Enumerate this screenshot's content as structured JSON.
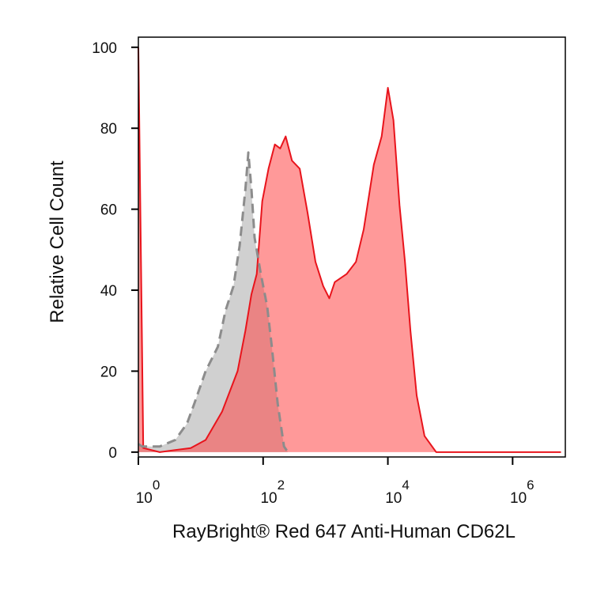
{
  "chart_data": {
    "type": "area",
    "xlabel": "RayBright® Red 647 Anti-Human CD62L",
    "ylabel": "Relative Cell Count",
    "xscale": "log",
    "xlim": [
      1,
      7000000
    ],
    "ylim": [
      -1.2,
      102.5
    ],
    "xticks": [
      {
        "value": 1,
        "label": "10",
        "exponent": "0"
      },
      {
        "value": 100,
        "label": "10",
        "exponent": "2"
      },
      {
        "value": 10000,
        "label": "10",
        "exponent": "4"
      },
      {
        "value": 1000000,
        "label": "10",
        "exponent": "6"
      }
    ],
    "yticks": [
      0,
      20,
      40,
      60,
      80,
      100
    ],
    "series": [
      {
        "color": "#8c8c8c",
        "fill": "rgba(170,170,170,0.55)",
        "line_style": "dashed",
        "x": [
          1,
          1.15,
          2.2,
          3.9,
          6,
          7.9,
          12,
          18.8,
          25,
          33.5,
          42,
          52,
          58,
          65,
          73,
          92,
          116,
          138,
          171,
          216,
          250
        ],
        "values": [
          2,
          1.4,
          1.4,
          3,
          7,
          12,
          20,
          26,
          35,
          41,
          51,
          65,
          74,
          65,
          53,
          44,
          36,
          26,
          12,
          1.4,
          0
        ]
      },
      {
        "color": "#e8141c",
        "fill": "rgba(255,70,70,0.55)",
        "line_style": "solid",
        "x": [
          1,
          1.2,
          2.2,
          3.9,
          6.9,
          12,
          22,
          39,
          52,
          65,
          79,
          97,
          122,
          154,
          188,
          230,
          290,
          387,
          517,
          690,
          920,
          1150,
          1410,
          2180,
          3080,
          4100,
          5960,
          7940,
          10000,
          12300,
          15400,
          18800,
          23000,
          29000,
          38700,
          59600,
          5960000
        ],
        "values": [
          100,
          1,
          0,
          0.5,
          1,
          3,
          10,
          20,
          30,
          39,
          44,
          62,
          70,
          76,
          75,
          78,
          72,
          70,
          59,
          47,
          41,
          38,
          42,
          44,
          47,
          55,
          71,
          78,
          90,
          82,
          61,
          47,
          30,
          14,
          4,
          0,
          0
        ]
      }
    ]
  }
}
